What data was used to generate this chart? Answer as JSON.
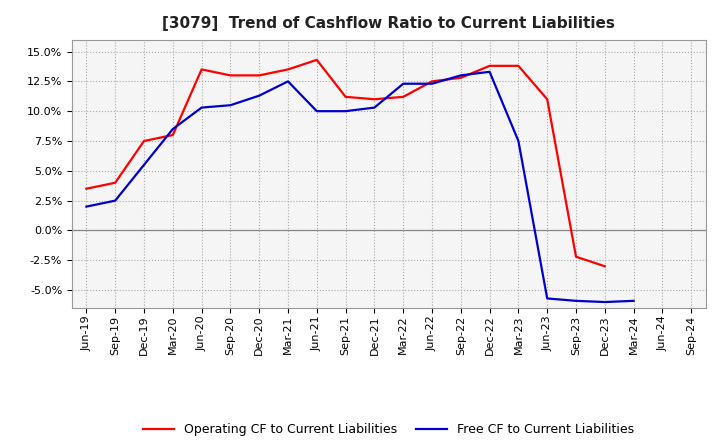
{
  "title": "[3079]  Trend of Cashflow Ratio to Current Liabilities",
  "x_labels": [
    "Jun-19",
    "Sep-19",
    "Dec-19",
    "Mar-20",
    "Jun-20",
    "Sep-20",
    "Dec-20",
    "Mar-21",
    "Jun-21",
    "Sep-21",
    "Dec-21",
    "Mar-22",
    "Jun-22",
    "Sep-22",
    "Dec-22",
    "Mar-23",
    "Jun-23",
    "Sep-23",
    "Dec-23",
    "Mar-24",
    "Jun-24",
    "Sep-24"
  ],
  "operating_cf": [
    3.5,
    4.0,
    7.5,
    8.0,
    13.5,
    13.0,
    13.0,
    13.5,
    14.3,
    11.2,
    11.0,
    11.2,
    12.5,
    12.8,
    13.8,
    13.8,
    11.0,
    -2.2,
    -3.0,
    null,
    null,
    null
  ],
  "free_cf": [
    2.0,
    2.5,
    5.5,
    8.5,
    10.3,
    10.5,
    11.3,
    12.5,
    10.0,
    10.0,
    10.3,
    12.3,
    12.3,
    13.0,
    13.3,
    7.5,
    -5.7,
    -5.9,
    -6.0,
    -5.9,
    null,
    null
  ],
  "operating_cf_color": "#ff0000",
  "free_cf_color": "#0000cc",
  "ylim": [
    -6.5,
    16.0
  ],
  "yticks": [
    -5.0,
    -2.5,
    0.0,
    2.5,
    5.0,
    7.5,
    10.0,
    12.5,
    15.0
  ],
  "background_color": "#ffffff",
  "plot_bg_color": "#f5f5f5",
  "grid_color": "#aaaaaa",
  "legend_op": "Operating CF to Current Liabilities",
  "legend_free": "Free CF to Current Liabilities",
  "title_fontsize": 11,
  "tick_fontsize": 8,
  "legend_fontsize": 9
}
